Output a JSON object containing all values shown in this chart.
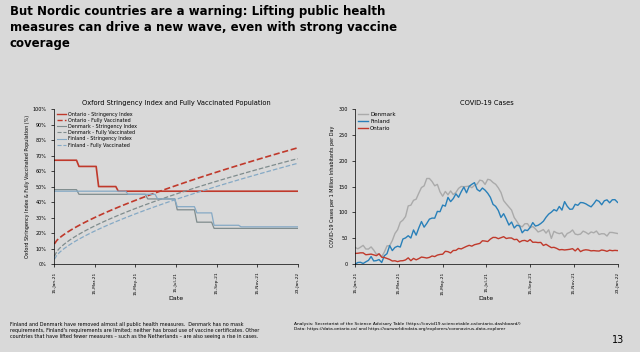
{
  "title": "But Nordic countries are a warning: Lifting public health\nmeasures can drive a new wave, even with strong vaccine\ncoverage",
  "left_title": "Oxford Stringency Index and Fully Vaccinated Population",
  "right_title": "COVID-19 Cases",
  "left_ylabel": "Oxford Stringency Index & Fully Vaccinated Population (%)",
  "right_ylabel": "COVID-19 Cases per 1 Million Inhabitants per Day",
  "xlabel": "Date",
  "page_bg": "#d9d9d9",
  "chart_bg": "#d9d9d9",
  "slide_number": "13",
  "ontario_stringency_color": "#c0392b",
  "ontario_vaccinated_color": "#c0392b",
  "denmark_stringency_color": "#7f8c8d",
  "denmark_vaccinated_color": "#7f8c8d",
  "finland_stringency_color": "#85a9c5",
  "finland_vaccinated_color": "#85a9c5",
  "denmark_cases_color": "#aaaaaa",
  "finland_cases_color": "#2980b9",
  "ontario_cases_color": "#c0392b",
  "n_points": 100,
  "left_ylim": [
    0,
    100
  ],
  "right_ylim": [
    0,
    300
  ],
  "dates": [
    "15-Jan-21",
    "15-Mar-21",
    "15-May-21",
    "15-Jul-21",
    "15-Sep-21",
    "15-Nov-21",
    "23-Jan-22"
  ],
  "footnote_left": "Finland and Denmark have removed almost all public health measures.  Denmark has no mask\nrequirements, Finland's requirements are limited; neither has broad use of vaccine certificates. Other\ncountries that have lifted fewer measures – such as the Netherlands – are also seeing a rise in cases.",
  "analysis": "Analysis: Secretariat of the Science Advisory Table (https://covid19.sciencetable.ca/ontario-dashboard/)\nData: https://data.ontario.ca/ and https://ourworldindata.org/explorers/coronavirus-data-explorer"
}
